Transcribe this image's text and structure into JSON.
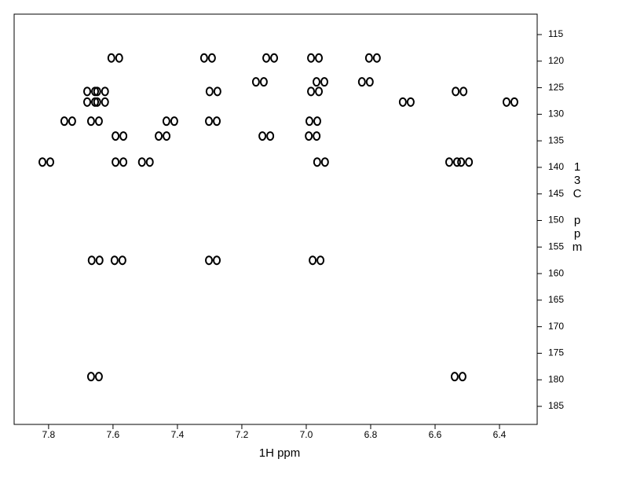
{
  "chart_data": {
    "type": "scatter",
    "xlabel": "1H ppm",
    "ylabel": "13C ppm",
    "x": [
      7.593,
      7.305,
      7.112,
      6.973,
      6.793,
      7.144,
      6.956,
      6.815,
      7.668,
      7.637,
      7.288,
      6.973,
      6.524,
      7.668,
      7.637,
      6.688,
      6.366,
      7.739,
      7.656,
      7.422,
      7.29,
      6.978,
      7.58,
      7.446,
      7.124,
      6.98,
      7.807,
      7.58,
      7.498,
      6.954,
      6.544,
      6.507,
      7.654,
      7.583,
      7.29,
      6.968,
      7.656,
      6.527
    ],
    "values": [
      119.4,
      119.4,
      119.4,
      119.4,
      119.4,
      123.9,
      123.9,
      123.9,
      125.7,
      125.7,
      125.7,
      125.7,
      125.7,
      127.7,
      127.7,
      127.7,
      127.7,
      131.3,
      131.3,
      131.3,
      131.3,
      131.3,
      134.1,
      134.1,
      134.1,
      134.1,
      139.0,
      139.0,
      139.0,
      139.0,
      139.0,
      139.0,
      157.5,
      157.5,
      157.5,
      157.5,
      179.4,
      179.4
    ],
    "color": "#000000",
    "xlim": [
      7.907,
      6.283
    ],
    "xticks": [
      7.8,
      7.6,
      7.4,
      7.2,
      {
        "value": 7,
        "label": "7.0"
      },
      6.8,
      6.6,
      6.4
    ],
    "ylim": [
      111.15,
      188.4
    ],
    "yticks": [
      115,
      120,
      125,
      130,
      135,
      140,
      145,
      150,
      155,
      160,
      165,
      170,
      175,
      180,
      185
    ]
  }
}
